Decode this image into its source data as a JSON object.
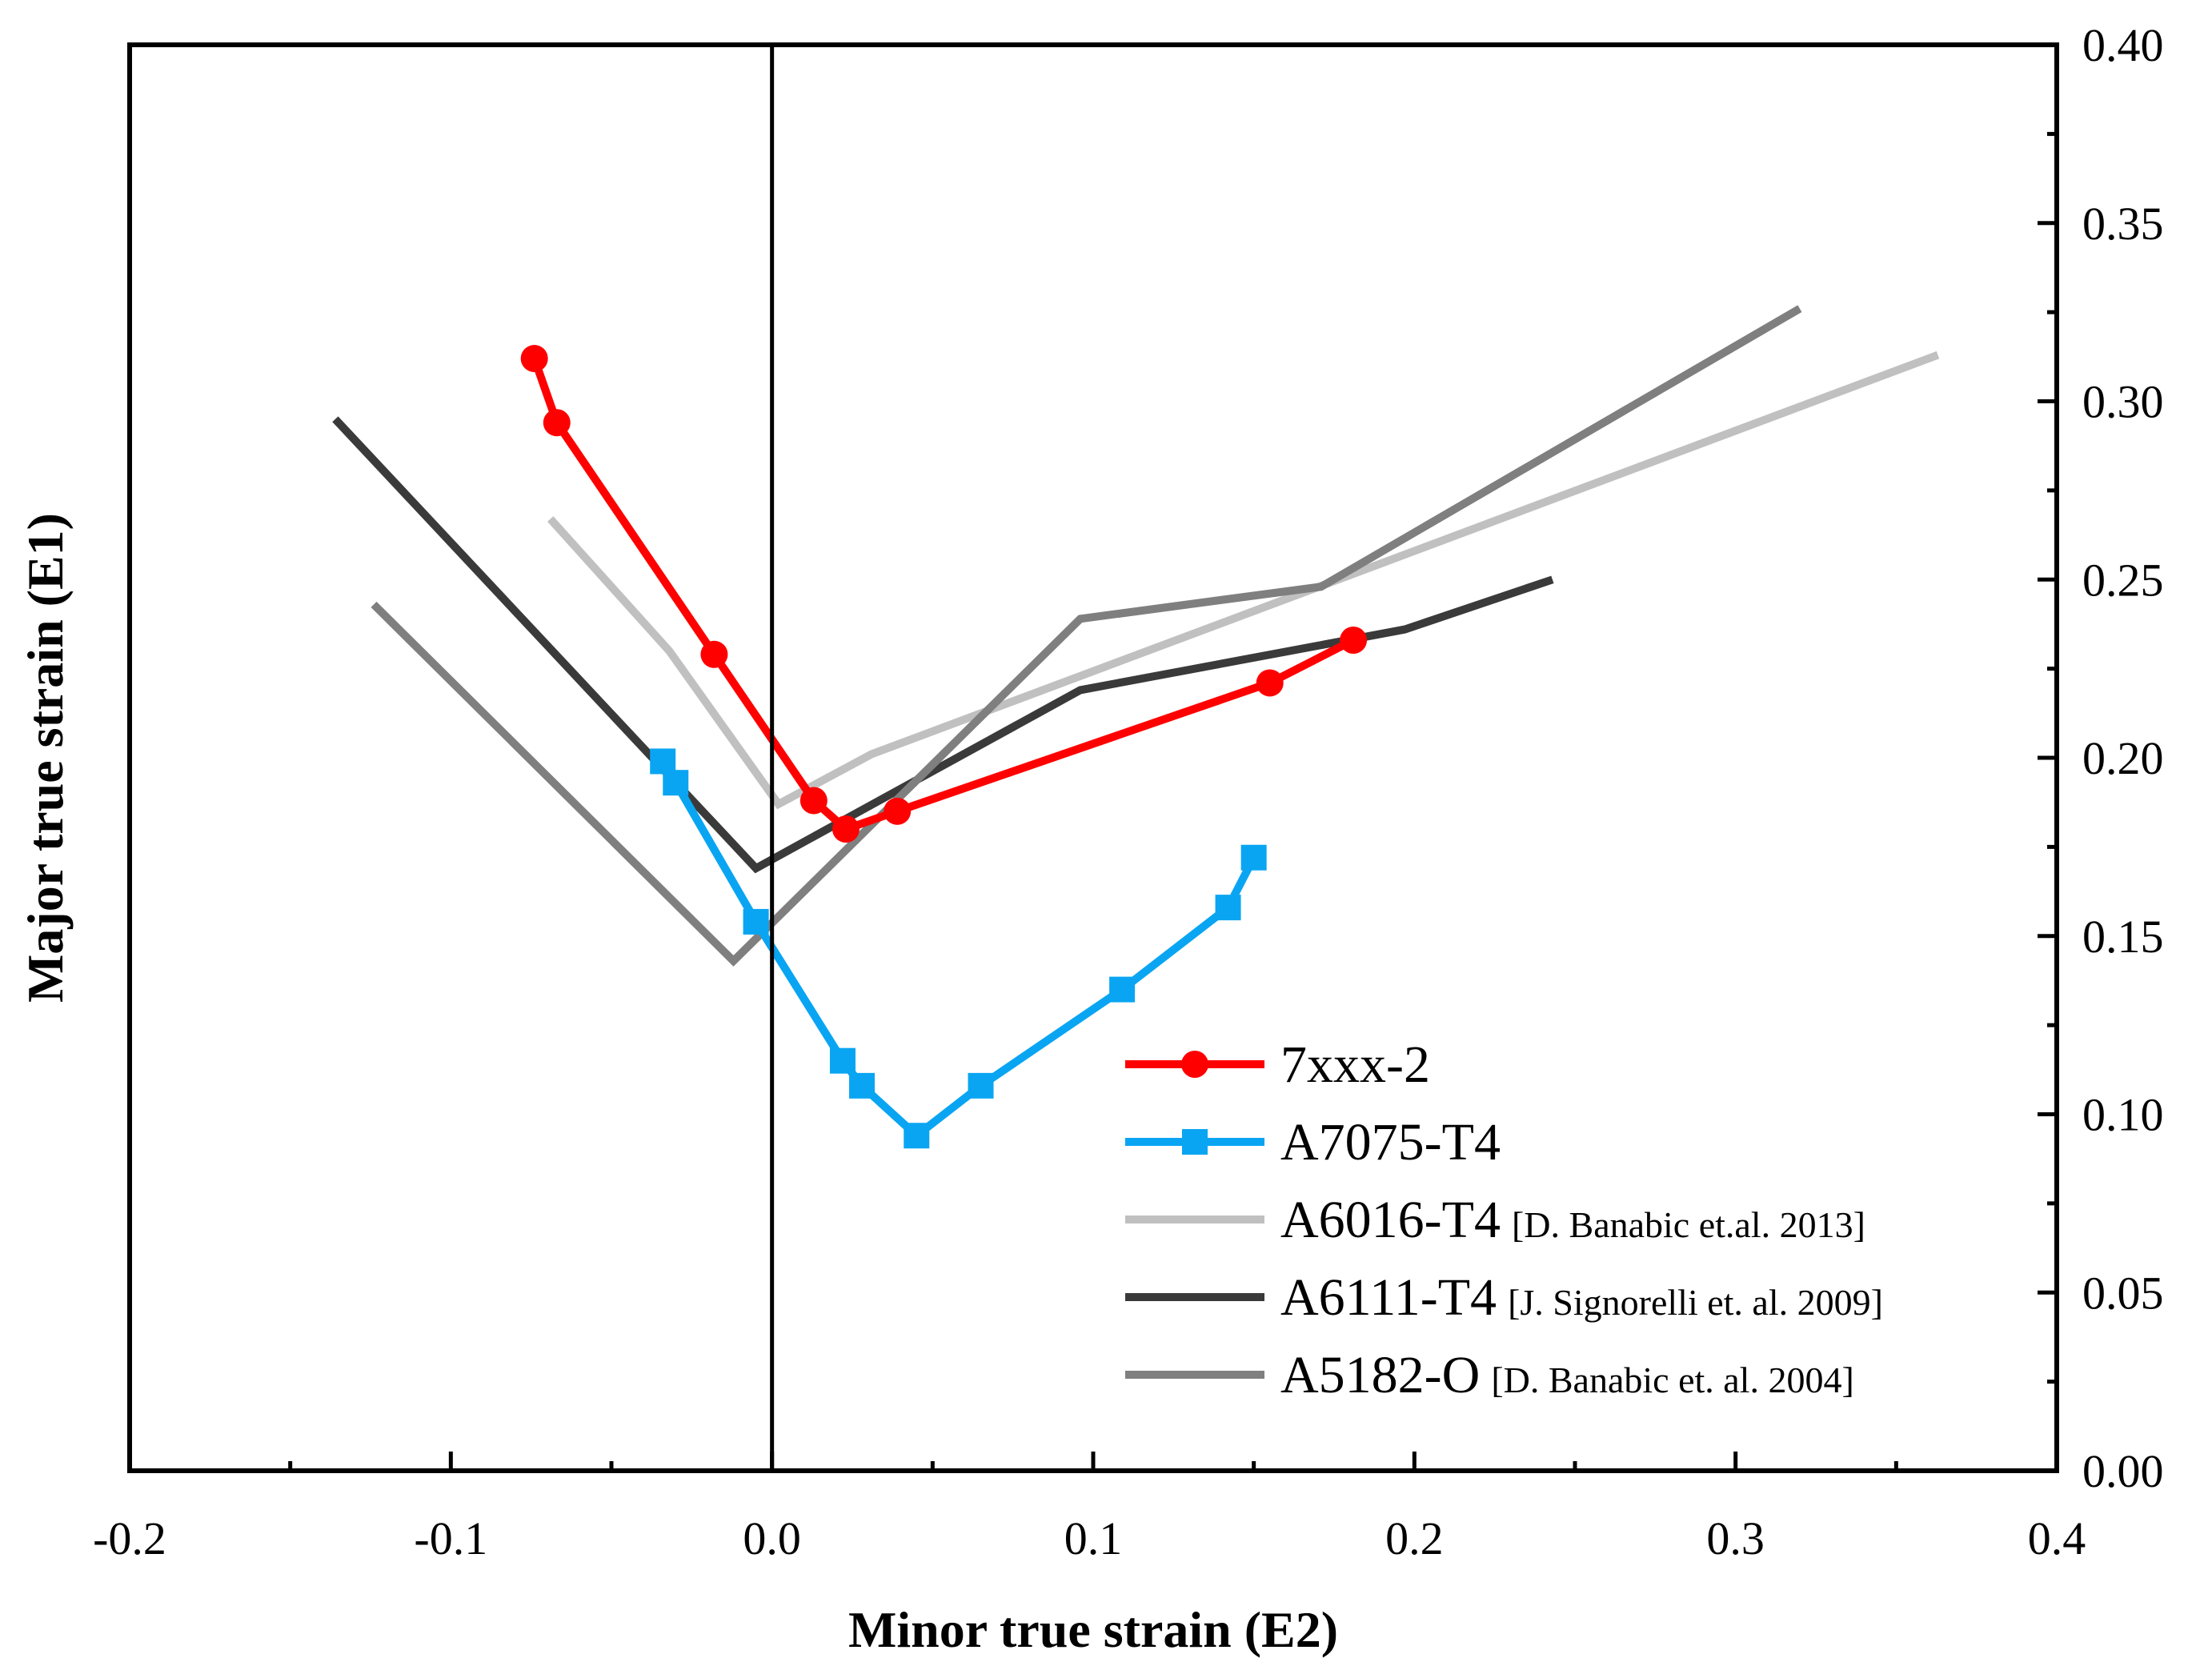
{
  "chart_data": {
    "type": "line",
    "title": "",
    "xlabel": "Minor true strain (E2)",
    "ylabel": "Major true strain (E1)",
    "xlim": [
      -0.2,
      0.4
    ],
    "ylim": [
      0.0,
      0.4
    ],
    "x_ticks": [
      -0.2,
      -0.1,
      0.0,
      0.1,
      0.2,
      0.3,
      0.4
    ],
    "x_tick_labels": [
      "-0.2",
      "-0.1",
      "0.0",
      "0.1",
      "0.2",
      "0.3",
      "0.4"
    ],
    "y_ticks": [
      0.0,
      0.05,
      0.1,
      0.15,
      0.2,
      0.25,
      0.3,
      0.35,
      0.4
    ],
    "y_tick_labels": [
      "0.00",
      "0.05",
      "0.10",
      "0.15",
      "0.20",
      "0.25",
      "0.30",
      "0.35",
      "0.40"
    ],
    "y_axis_side": "right",
    "reference_line_x": 0.0,
    "grid": false,
    "legend_position": "bottom-right",
    "series": [
      {
        "name": "7xxx-2",
        "note": "",
        "color": "#ff0000",
        "marker": "circle",
        "x": [
          -0.074,
          -0.067,
          -0.018,
          0.013,
          0.023,
          0.039,
          0.155,
          0.181
        ],
        "y": [
          0.312,
          0.294,
          0.229,
          0.188,
          0.18,
          0.185,
          0.221,
          0.233
        ]
      },
      {
        "name": "A7075-T4",
        "note": "",
        "color": "#0aa5f2",
        "marker": "square",
        "x": [
          -0.034,
          -0.03,
          -0.005,
          0.022,
          0.028,
          0.045,
          0.065,
          0.109,
          0.142,
          0.15
        ],
        "y": [
          0.199,
          0.193,
          0.154,
          0.115,
          0.108,
          0.094,
          0.108,
          0.135,
          0.158,
          0.172
        ]
      },
      {
        "name": "A6016-T4",
        "note": "[D. Banabic et.al. 2013]",
        "color": "#c0c0c0",
        "marker": "none",
        "x": [
          -0.069,
          -0.032,
          0.002,
          0.031,
          0.363
        ],
        "y": [
          0.267,
          0.23,
          0.187,
          0.201,
          0.313
        ]
      },
      {
        "name": "A6111-T4",
        "note": "[J. Signorelli et. al. 2009]",
        "color": "#3a3a3a",
        "marker": "none",
        "x": [
          -0.136,
          -0.005,
          0.096,
          0.197,
          0.243
        ],
        "y": [
          0.295,
          0.169,
          0.219,
          0.236,
          0.25
        ]
      },
      {
        "name": "A5182-O",
        "note": "[D. Banabic et. al. 2004]",
        "color": "#7f7f7f",
        "marker": "none",
        "x": [
          -0.124,
          -0.012,
          0.096,
          0.171,
          0.32
        ],
        "y": [
          0.243,
          0.143,
          0.239,
          0.248,
          0.326
        ]
      }
    ]
  }
}
